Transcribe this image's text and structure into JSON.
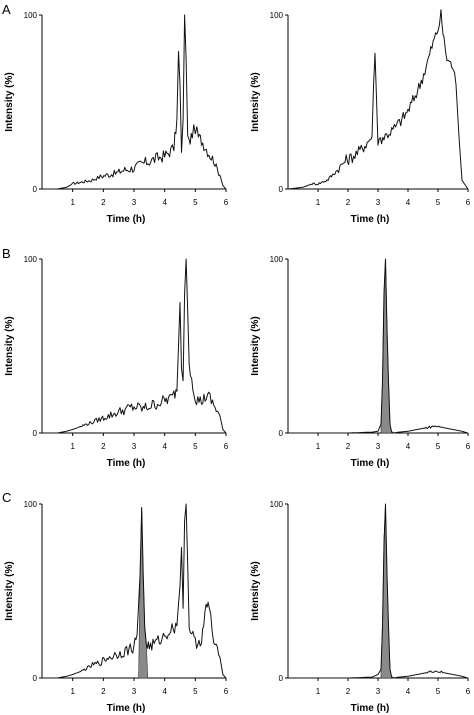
{
  "figure": {
    "row_labels": [
      "A",
      "B",
      "C"
    ]
  },
  "chart_data": [
    {
      "id": "A-left",
      "row": "A",
      "type": "line",
      "xlabel": "Time (h)",
      "ylabel": "Intensity (%)",
      "xlim": [
        0,
        6
      ],
      "ylim": [
        0,
        100
      ],
      "xticks": [
        1,
        2,
        3,
        4,
        5,
        6
      ],
      "yticks": [
        0,
        100
      ],
      "grid": false,
      "series": [
        {
          "x": [
            0,
            0.5,
            0.8,
            1.0,
            1.3,
            1.6,
            1.9,
            2.1,
            2.4,
            2.7,
            3.0,
            3.2,
            3.5,
            3.8,
            4.0,
            4.2,
            4.3,
            4.4,
            4.45,
            4.5,
            4.55,
            4.6,
            4.65,
            4.7,
            4.75,
            4.8,
            4.9,
            5.0,
            5.1,
            5.2,
            5.4,
            5.6,
            5.8,
            5.9,
            6.0
          ],
          "y": [
            0,
            0,
            1,
            3,
            4,
            5,
            7,
            8,
            9,
            11,
            12,
            14,
            16,
            18,
            19,
            22,
            24,
            40,
            78,
            60,
            20,
            40,
            100,
            75,
            30,
            26,
            32,
            35,
            30,
            28,
            22,
            16,
            8,
            2,
            0
          ],
          "color": "#111111"
        }
      ]
    },
    {
      "id": "A-right",
      "row": "A",
      "type": "line",
      "xlabel": "Time (h)",
      "ylabel": "Intensity (%)",
      "xlim": [
        0,
        6
      ],
      "ylim": [
        0,
        100
      ],
      "xticks": [
        1,
        2,
        3,
        4,
        5,
        6
      ],
      "yticks": [
        0,
        100
      ],
      "grid": false,
      "series": [
        {
          "x": [
            0,
            0.5,
            0.8,
            1.0,
            1.3,
            1.6,
            1.9,
            2.1,
            2.4,
            2.6,
            2.8,
            2.85,
            2.9,
            2.95,
            3.0,
            3.2,
            3.5,
            3.8,
            4.0,
            4.2,
            4.4,
            4.6,
            4.8,
            5.0,
            5.1,
            5.2,
            5.3,
            5.5,
            5.6,
            5.7,
            5.8,
            6.0
          ],
          "y": [
            0,
            1,
            3,
            3,
            5,
            10,
            16,
            18,
            22,
            26,
            30,
            60,
            78,
            50,
            28,
            30,
            34,
            40,
            45,
            52,
            60,
            70,
            82,
            92,
            100,
            85,
            75,
            70,
            60,
            30,
            5,
            0
          ],
          "color": "#111111"
        }
      ]
    },
    {
      "id": "B-left",
      "row": "B",
      "type": "line",
      "xlabel": "Time (h)",
      "ylabel": "Intensity (%)",
      "xlim": [
        0,
        6
      ],
      "ylim": [
        0,
        100
      ],
      "xticks": [
        1,
        2,
        3,
        4,
        5,
        6
      ],
      "yticks": [
        0,
        100
      ],
      "grid": false,
      "series": [
        {
          "x": [
            0,
            0.5,
            0.8,
            1.0,
            1.3,
            1.6,
            1.9,
            2.2,
            2.5,
            2.8,
            3.0,
            3.3,
            3.6,
            3.9,
            4.2,
            4.3,
            4.4,
            4.45,
            4.5,
            4.55,
            4.6,
            4.65,
            4.7,
            4.8,
            5.0,
            5.2,
            5.4,
            5.6,
            5.8,
            5.9,
            6.0
          ],
          "y": [
            0,
            0,
            1,
            2,
            4,
            6,
            8,
            10,
            12,
            14,
            15,
            14,
            16,
            18,
            20,
            22,
            24,
            50,
            75,
            40,
            30,
            80,
            100,
            40,
            20,
            18,
            22,
            16,
            10,
            2,
            0
          ],
          "color": "#111111"
        }
      ]
    },
    {
      "id": "B-right",
      "row": "B",
      "type": "line",
      "xlabel": "Time (h)",
      "ylabel": "Intensity (%)",
      "xlim": [
        0,
        6
      ],
      "ylim": [
        0,
        100
      ],
      "xticks": [
        1,
        2,
        3,
        4,
        5,
        6
      ],
      "yticks": [
        0,
        100
      ],
      "grid": false,
      "series": [
        {
          "x": [
            0,
            1,
            2,
            2.8,
            3.0,
            3.1,
            3.15,
            3.2,
            3.25,
            3.3,
            3.35,
            3.4,
            3.45,
            3.5,
            3.7,
            4.0,
            4.3,
            4.6,
            4.9,
            5.2,
            5.5,
            5.8,
            6.0
          ],
          "y": [
            0,
            0,
            0,
            0.5,
            1,
            5,
            30,
            80,
            100,
            60,
            30,
            5,
            1,
            0,
            0.5,
            1,
            2,
            3,
            4,
            3,
            2,
            1,
            0
          ],
          "color": "#111111",
          "shaded_peak_x": [
            3.1,
            3.45
          ]
        }
      ]
    },
    {
      "id": "C-left",
      "row": "C",
      "type": "line",
      "xlabel": "Time (h)",
      "ylabel": "Intensity (%)",
      "xlim": [
        0,
        6
      ],
      "ylim": [
        0,
        100
      ],
      "xticks": [
        1,
        2,
        3,
        4,
        5,
        6
      ],
      "yticks": [
        0,
        100
      ],
      "grid": false,
      "series": [
        {
          "x": [
            0,
            0.5,
            0.8,
            1.0,
            1.3,
            1.6,
            1.9,
            2.2,
            2.5,
            2.8,
            3.0,
            3.1,
            3.2,
            3.25,
            3.3,
            3.35,
            3.4,
            3.5,
            3.7,
            4.0,
            4.2,
            4.4,
            4.5,
            4.55,
            4.6,
            4.65,
            4.7,
            4.8,
            5.0,
            5.2,
            5.35,
            5.45,
            5.5,
            5.6,
            5.8,
            5.9,
            6.0
          ],
          "y": [
            0,
            0,
            1,
            2,
            4,
            7,
            9,
            12,
            14,
            16,
            18,
            25,
            60,
            98,
            60,
            30,
            20,
            18,
            20,
            24,
            28,
            30,
            55,
            75,
            40,
            90,
            100,
            30,
            20,
            22,
            40,
            42,
            35,
            20,
            12,
            2,
            0
          ],
          "color": "#111111",
          "shaded_peak_x": [
            3.15,
            3.45
          ]
        }
      ]
    },
    {
      "id": "C-right",
      "row": "C",
      "type": "line",
      "xlabel": "Time (h)",
      "ylabel": "Intensity (%)",
      "xlim": [
        0,
        6
      ],
      "ylim": [
        0,
        100
      ],
      "xticks": [
        1,
        2,
        3,
        4,
        5,
        6
      ],
      "yticks": [
        0,
        100
      ],
      "grid": false,
      "series": [
        {
          "x": [
            0,
            1,
            2,
            2.8,
            3.0,
            3.1,
            3.15,
            3.2,
            3.25,
            3.3,
            3.35,
            3.4,
            3.45,
            3.5,
            3.7,
            4.0,
            4.3,
            4.6,
            4.9,
            5.2,
            5.5,
            5.8,
            6.0
          ],
          "y": [
            0,
            0,
            0,
            0.5,
            2,
            5,
            30,
            80,
            100,
            60,
            30,
            5,
            1,
            0,
            0.5,
            1,
            2,
            3,
            4,
            3,
            2,
            1,
            0
          ],
          "color": "#111111",
          "shaded_peak_x": [
            3.1,
            3.45
          ]
        }
      ]
    }
  ]
}
